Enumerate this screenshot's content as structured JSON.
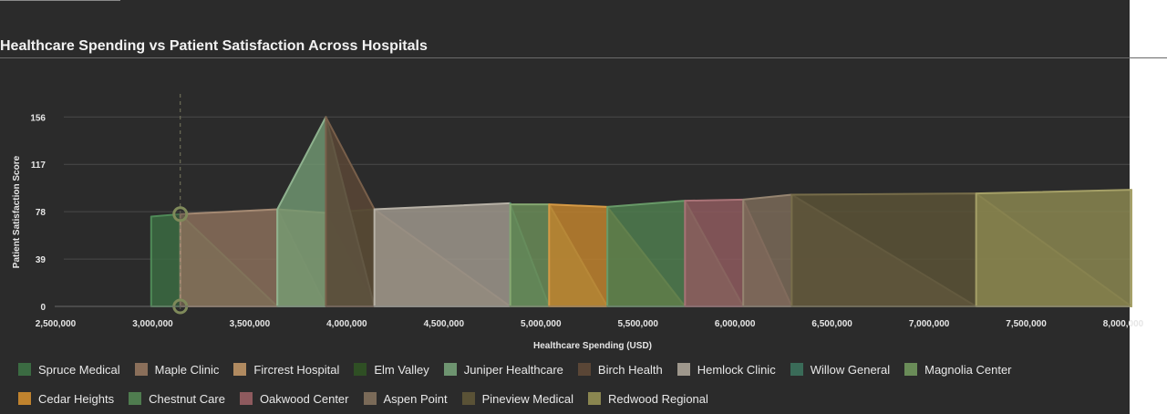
{
  "page": {
    "title": "Healthcare Spending vs Patient Satisfaction Across Hospitals"
  },
  "chart_data": {
    "type": "area",
    "title": "Healthcare Spending vs Patient Satisfaction Across Hospitals",
    "xlabel": "Healthcare Spending (USD)",
    "ylabel": "Patient Satisfaction Score",
    "xlim": [
      2500000,
      8000000
    ],
    "ylim": [
      0,
      175
    ],
    "xticks": [
      "2,500,000",
      "3,000,000",
      "3,500,000",
      "4,000,000",
      "4,500,000",
      "5,000,000",
      "5,500,000",
      "6,000,000",
      "6,500,000",
      "7,000,000",
      "7,500,000",
      "8,000,000"
    ],
    "xtick_values": [
      2500000,
      3000000,
      3500000,
      4000000,
      4500000,
      5000000,
      5500000,
      6000000,
      6500000,
      7000000,
      7500000,
      8000000
    ],
    "yticks": [
      "0",
      "39",
      "78",
      "117",
      "156"
    ],
    "ytick_values": [
      0,
      39,
      78,
      117,
      156
    ],
    "grid": true,
    "legend_position": "bottom",
    "crosshair_x": 3100000,
    "crosshair_markers_y": [
      76,
      0
    ],
    "series": [
      {
        "name": "Spruce Medical",
        "color": "#3b6b42",
        "stroke": "#4f8a58",
        "x": [
          2950000,
          3100000
        ],
        "y": [
          74,
          76
        ]
      },
      {
        "name": "Maple Clinic",
        "color": "#8a6f5a",
        "stroke": "#a58a73",
        "x": [
          3100000,
          3600000
        ],
        "y": [
          76,
          80
        ]
      },
      {
        "name": "Fircrest Hospital",
        "color": "#b08a60",
        "stroke": "#c9a276",
        "x": [
          3600000,
          3850000
        ],
        "y": [
          80,
          77
        ]
      },
      {
        "name": "Elm Valley",
        "color": "#2f4f24",
        "stroke": "#4a6b3a",
        "x": [
          3850000,
          4100000
        ],
        "y": [
          77,
          80
        ]
      },
      {
        "name": "Juniper Healthcare",
        "color": "#6e9470",
        "stroke": "#8fb28f",
        "x": [
          3600000,
          3850000
        ],
        "y": [
          80,
          156
        ]
      },
      {
        "name": "Birch Health",
        "color": "#5a4636",
        "stroke": "#785f4a",
        "x": [
          3850000,
          4100000
        ],
        "y": [
          156,
          80
        ]
      },
      {
        "name": "Hemlock Clinic",
        "color": "#9e978c",
        "stroke": "#b7b1a6",
        "x": [
          4100000,
          4800000
        ],
        "y": [
          80,
          85
        ]
      },
      {
        "name": "Willow General",
        "color": "#3a6b58",
        "stroke": "#4f8a73",
        "x": [
          4800000,
          4800000
        ],
        "y": [
          85,
          84
        ]
      },
      {
        "name": "Magnolia Center",
        "color": "#6a8c58",
        "stroke": "#86a872",
        "x": [
          4800000,
          5000000
        ],
        "y": [
          84,
          84
        ]
      },
      {
        "name": "Cedar Heights",
        "color": "#c0832e",
        "stroke": "#d69a45",
        "x": [
          5000000,
          5300000
        ],
        "y": [
          84,
          82
        ]
      },
      {
        "name": "Chestnut Care",
        "color": "#4f7c4f",
        "stroke": "#689a68",
        "x": [
          5300000,
          5700000
        ],
        "y": [
          82,
          87
        ]
      },
      {
        "name": "Oakwood Center",
        "color": "#8e5a5e",
        "stroke": "#a87276",
        "x": [
          5700000,
          6000000
        ],
        "y": [
          87,
          88
        ]
      },
      {
        "name": "Aspen Point",
        "color": "#7a6a58",
        "stroke": "#958470",
        "x": [
          6000000,
          6250000
        ],
        "y": [
          88,
          92
        ]
      },
      {
        "name": "Pineview Medical",
        "color": "#5a5236",
        "stroke": "#776d4a",
        "x": [
          6250000,
          7200000
        ],
        "y": [
          92,
          93
        ]
      },
      {
        "name": "Redwood Regional",
        "color": "#8a8650",
        "stroke": "#a5a067",
        "x": [
          7200000,
          8000000
        ],
        "y": [
          93,
          96
        ]
      }
    ]
  }
}
